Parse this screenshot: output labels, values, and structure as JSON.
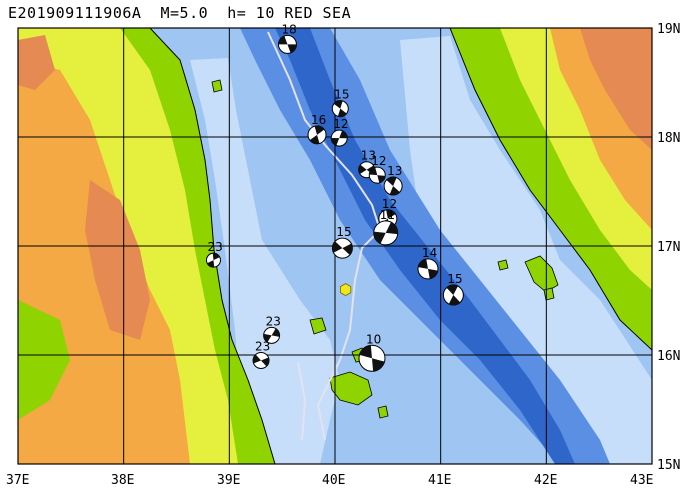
{
  "title": "E201909111906A  M=5.0  h= 10 RED SEA",
  "lon_labels": [
    "37E",
    "38E",
    "39E",
    "40E",
    "41E",
    "42E",
    "43E"
  ],
  "lat_labels": [
    "19N",
    "18N",
    "17N",
    "16N",
    "15N"
  ],
  "events": [
    {
      "label": "18",
      "lon": 39.55,
      "lat": 18.85
    },
    {
      "label": "15",
      "lon": 40.05,
      "lat": 18.26
    },
    {
      "label": "16",
      "lon": 39.83,
      "lat": 18.02
    },
    {
      "label": "12",
      "lon": 40.04,
      "lat": 17.99
    },
    {
      "label": "13",
      "lon": 40.3,
      "lat": 17.7
    },
    {
      "label": "12",
      "lon": 40.4,
      "lat": 17.65
    },
    {
      "label": "13",
      "lon": 40.55,
      "lat": 17.55
    },
    {
      "label": "12",
      "lon": 40.5,
      "lat": 17.25
    },
    {
      "label": "11",
      "lon": 40.48,
      "lat": 17.12
    },
    {
      "label": "15",
      "lon": 40.07,
      "lat": 16.98
    },
    {
      "label": "14",
      "lon": 40.88,
      "lat": 16.79
    },
    {
      "label": "15",
      "lon": 41.12,
      "lat": 16.55
    },
    {
      "label": "23",
      "lon": 38.85,
      "lat": 16.87
    },
    {
      "label": "23",
      "lon": 39.4,
      "lat": 16.18
    },
    {
      "label": "23",
      "lon": 39.3,
      "lat": 15.95
    },
    {
      "label": "10",
      "lon": 40.35,
      "lat": 15.97
    }
  ],
  "star": {
    "lon": 40.1,
    "lat": 16.6
  },
  "colors": {
    "deep": "#2e67c9",
    "mid": "#5b8fe3",
    "sea": "#9fc5f3",
    "shelf": "#c6defa",
    "coast": "#8fd400",
    "lowland": "#e5ef3e",
    "hill": "#f4a944",
    "mountain": "#e48a52"
  }
}
